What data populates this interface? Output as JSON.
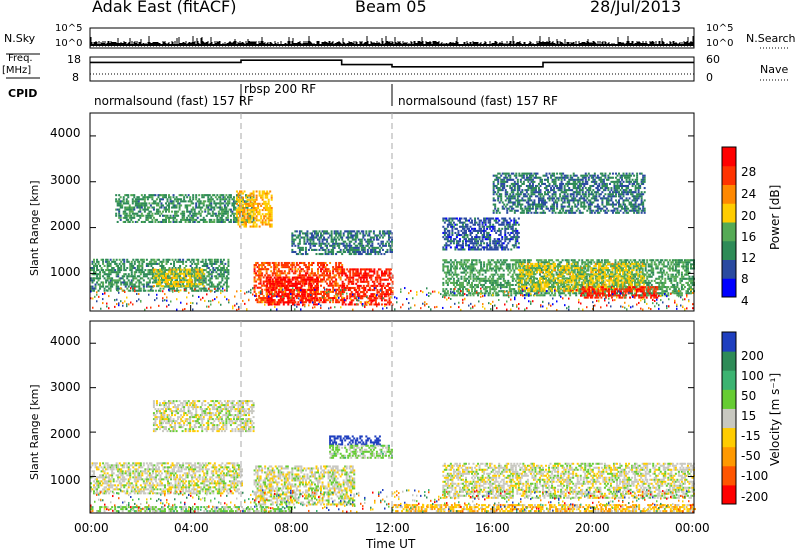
{
  "header": {
    "title": "Adak East (fitACF)",
    "beam": "Beam 05",
    "date": "28/Jul/2013"
  },
  "strip_panels": {
    "nsky_label": "N.Sky",
    "nsky_ticks": [
      "10^5",
      "10^0"
    ],
    "nsearch_label": "N.Search",
    "nsearch_ticks": [
      "10^5",
      "10^0"
    ],
    "freq_label_1": "Freq.",
    "freq_label_2": "[MHz]",
    "freq_ticks": [
      "18",
      "8"
    ],
    "nave_label": "Nave",
    "nave_ticks": [
      "60",
      "0"
    ],
    "cpid_label": "CPID",
    "cpid_segments": [
      {
        "text": "normalsound (fast) 157 RF",
        "start_hour": 0
      },
      {
        "text": "rbsp 200 RF",
        "start_hour": 6
      },
      {
        "text": "normalsound (fast) 157 RF",
        "start_hour": 12
      }
    ]
  },
  "power_panel": {
    "ylabel": "Slant Range [km]",
    "yticks": [
      "4000",
      "3000",
      "2000",
      "1000"
    ],
    "colorbar_label": "Power [dB]",
    "colorbar_ticks": [
      "28",
      "24",
      "20",
      "16",
      "12",
      "8",
      "4"
    ],
    "colors": [
      "#0000ff",
      "#2a4aa0",
      "#2e8b57",
      "#55aa55",
      "#ffcc00",
      "#ff8800",
      "#ff3300",
      "#ff0000"
    ]
  },
  "velocity_panel": {
    "ylabel": "Slant Range [km]",
    "yticks": [
      "4000",
      "3000",
      "2000",
      "1000"
    ],
    "colorbar_label": "Velocity [m s⁻¹]",
    "colorbar_ticks": [
      "200",
      "100",
      "50",
      "15",
      "-15",
      "-50",
      "-100",
      "-200"
    ],
    "colors": [
      "#1f3fbf",
      "#2e8b57",
      "#3cb371",
      "#66cc33",
      "#c8c8c0",
      "#ffcc00",
      "#ff9900",
      "#ff5500",
      "#ff0000"
    ]
  },
  "xaxis": {
    "label": "Time UT",
    "ticks": [
      "00:00",
      "04:00",
      "08:00",
      "12:00",
      "16:00",
      "20:00",
      "00:00"
    ]
  },
  "chart_data": {
    "type": "heatmap",
    "title": "Adak East (fitACF)",
    "subtitle": "Beam 05",
    "date": "28/Jul/2013",
    "xlabel": "Time UT",
    "ylabel": "Slant Range [km]",
    "x_range_hours": [
      0,
      24
    ],
    "y_range_km": [
      180,
      4500
    ],
    "frequency_segments_mhz": [
      {
        "start_hour": 0,
        "end_hour": 6,
        "freq": 16
      },
      {
        "start_hour": 6,
        "end_hour": 10,
        "freq": 17
      },
      {
        "start_hour": 10,
        "end_hour": 12,
        "freq": 15
      },
      {
        "start_hour": 12,
        "end_hour": 18,
        "freq": 14
      },
      {
        "start_hour": 18,
        "end_hour": 24,
        "freq": 16
      }
    ],
    "cpid_changes_hours": [
      6,
      12
    ],
    "power": {
      "label": "Power [dB]",
      "range": [
        0,
        30
      ],
      "regions": [
        {
          "t0": 0.0,
          "t1": 5.5,
          "r0": 600,
          "r1": 1300,
          "value": 10
        },
        {
          "t0": 2.5,
          "t1": 4.5,
          "r0": 700,
          "r1": 1100,
          "value": 16
        },
        {
          "t0": 1.0,
          "t1": 6.5,
          "r0": 2100,
          "r1": 2700,
          "value": 10
        },
        {
          "t0": 5.8,
          "t1": 7.2,
          "r0": 2000,
          "r1": 2800,
          "value": 18
        },
        {
          "t0": 6.5,
          "t1": 10.0,
          "r0": 350,
          "r1": 1250,
          "value": 24
        },
        {
          "t0": 7.0,
          "t1": 9.0,
          "r0": 300,
          "r1": 900,
          "value": 28
        },
        {
          "t0": 8.0,
          "t1": 12.0,
          "r0": 1400,
          "r1": 1900,
          "value": 8
        },
        {
          "t0": 10.0,
          "t1": 12.0,
          "r0": 300,
          "r1": 1100,
          "value": 26
        },
        {
          "t0": 14.0,
          "t1": 17.0,
          "r0": 1500,
          "r1": 2200,
          "value": 6
        },
        {
          "t0": 14.0,
          "t1": 24.0,
          "r0": 500,
          "r1": 1300,
          "value": 12
        },
        {
          "t0": 17.0,
          "t1": 22.0,
          "r0": 600,
          "r1": 1200,
          "value": 16
        },
        {
          "t0": 19.5,
          "t1": 22.5,
          "r0": 450,
          "r1": 700,
          "value": 26
        },
        {
          "t0": 16.0,
          "t1": 22.0,
          "r0": 2300,
          "r1": 3200,
          "value": 8
        }
      ]
    },
    "velocity": {
      "label": "Velocity [m s⁻¹]",
      "range": [
        -200,
        200
      ],
      "regions": [
        {
          "t0": 0.0,
          "t1": 6.0,
          "r0": 600,
          "r1": 1300,
          "value": 0
        },
        {
          "t0": 6.5,
          "t1": 10.5,
          "r0": 350,
          "r1": 1250,
          "value": 0
        },
        {
          "t0": 2.5,
          "t1": 6.5,
          "r0": 2000,
          "r1": 2700,
          "value": 0
        },
        {
          "t0": 9.5,
          "t1": 11.5,
          "r0": 1700,
          "r1": 1900,
          "value": 200
        },
        {
          "t0": 9.5,
          "t1": 12.0,
          "r0": 1400,
          "r1": 1700,
          "value": 30
        },
        {
          "t0": 14.0,
          "t1": 24.0,
          "r0": 500,
          "r1": 1300,
          "value": 0
        },
        {
          "t0": 12.0,
          "t1": 24.0,
          "r0": 200,
          "r1": 350,
          "value": -50
        },
        {
          "t0": 0.0,
          "t1": 8.0,
          "r0": 200,
          "r1": 320,
          "value": 40
        }
      ]
    }
  }
}
